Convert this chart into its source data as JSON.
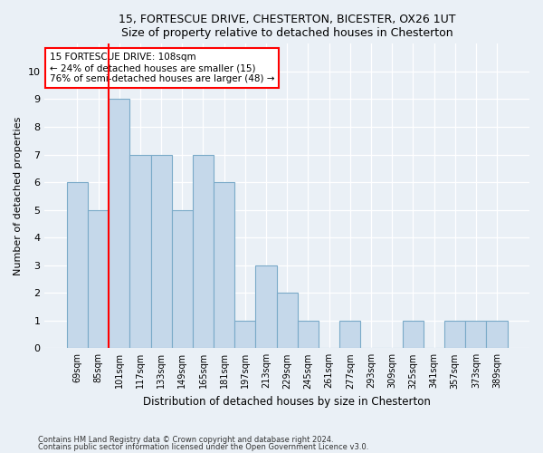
{
  "title1": "15, FORTESCUE DRIVE, CHESTERTON, BICESTER, OX26 1UT",
  "title2": "Size of property relative to detached houses in Chesterton",
  "xlabel": "Distribution of detached houses by size in Chesterton",
  "ylabel": "Number of detached properties",
  "categories": [
    "69sqm",
    "85sqm",
    "101sqm",
    "117sqm",
    "133sqm",
    "149sqm",
    "165sqm",
    "181sqm",
    "197sqm",
    "213sqm",
    "229sqm",
    "245sqm",
    "261sqm",
    "277sqm",
    "293sqm",
    "309sqm",
    "325sqm",
    "341sqm",
    "357sqm",
    "373sqm",
    "389sqm"
  ],
  "values": [
    6,
    5,
    9,
    7,
    7,
    5,
    7,
    6,
    1,
    3,
    2,
    1,
    0,
    1,
    0,
    0,
    1,
    0,
    1,
    1,
    1
  ],
  "bar_color": "#c5d8ea",
  "bar_edge_color": "#7aaac8",
  "vline_x_index": 2,
  "annotation_text_line1": "15 FORTESCUE DRIVE: 108sqm",
  "annotation_text_line2": "← 24% of detached houses are smaller (15)",
  "annotation_text_line3": "76% of semi-detached houses are larger (48) →",
  "annotation_box_color": "white",
  "annotation_box_edge_color": "red",
  "vline_color": "red",
  "ylim": [
    0,
    11
  ],
  "yticks": [
    0,
    1,
    2,
    3,
    4,
    5,
    6,
    7,
    8,
    9,
    10
  ],
  "footnote1": "Contains HM Land Registry data © Crown copyright and database right 2024.",
  "footnote2": "Contains public sector information licensed under the Open Government Licence v3.0.",
  "bg_color": "#eaf0f6",
  "plot_bg_color": "#eaf0f6",
  "grid_color": "#ffffff"
}
